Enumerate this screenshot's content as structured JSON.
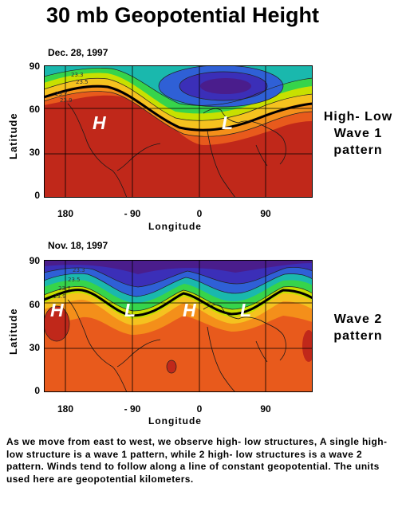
{
  "title": "30 mb Geopotential Height",
  "panels": [
    {
      "date": "Dec. 28, 1997",
      "lat_ticks": [
        "90",
        "60",
        "30",
        "0"
      ],
      "lon_ticks": [
        "180",
        "- 90",
        "0",
        "90"
      ],
      "xlabel": "Longitude",
      "ylabel": "Latitude",
      "contour_labels": [
        "23.3",
        "23.5",
        "23.7",
        "23.9"
      ],
      "map_labels": [
        "H",
        "L"
      ],
      "side_label": [
        "High- Low",
        "Wave 1",
        "pattern"
      ],
      "colors": [
        "#c0281a",
        "#e85a1c",
        "#f48f1a",
        "#f5c21f",
        "#c8e000",
        "#36d44b",
        "#1ab8ad",
        "#2f60d6",
        "#3b2fb8",
        "#4a1d8c"
      ]
    },
    {
      "date": "Nov. 18, 1997",
      "lat_ticks": [
        "90",
        "60",
        "30",
        "0"
      ],
      "lon_ticks": [
        "180",
        "- 90",
        "0",
        "90"
      ],
      "xlabel": "Longitude",
      "ylabel": "Latitude",
      "contour_labels": [
        "23.3",
        "23.5",
        "23.7",
        "23.9"
      ],
      "map_labels": [
        "H",
        "L",
        "H",
        "L"
      ],
      "side_label": [
        "Wave 2",
        "pattern"
      ],
      "colors": [
        "#e85a1c",
        "#f48f1a",
        "#f5c21f",
        "#c8e000",
        "#36d44b",
        "#1ab8ad",
        "#2f60d6",
        "#3b2fb8",
        "#4a1d8c"
      ]
    }
  ],
  "description": "As we move from east to west, we observe high- low structures, A single high- low structure is a wave 1 pattern, while 2 high- low structures is a wave 2 pattern.  Winds tend to follow along a line of constant geopotential.  The units used here are geopotential kilometers."
}
